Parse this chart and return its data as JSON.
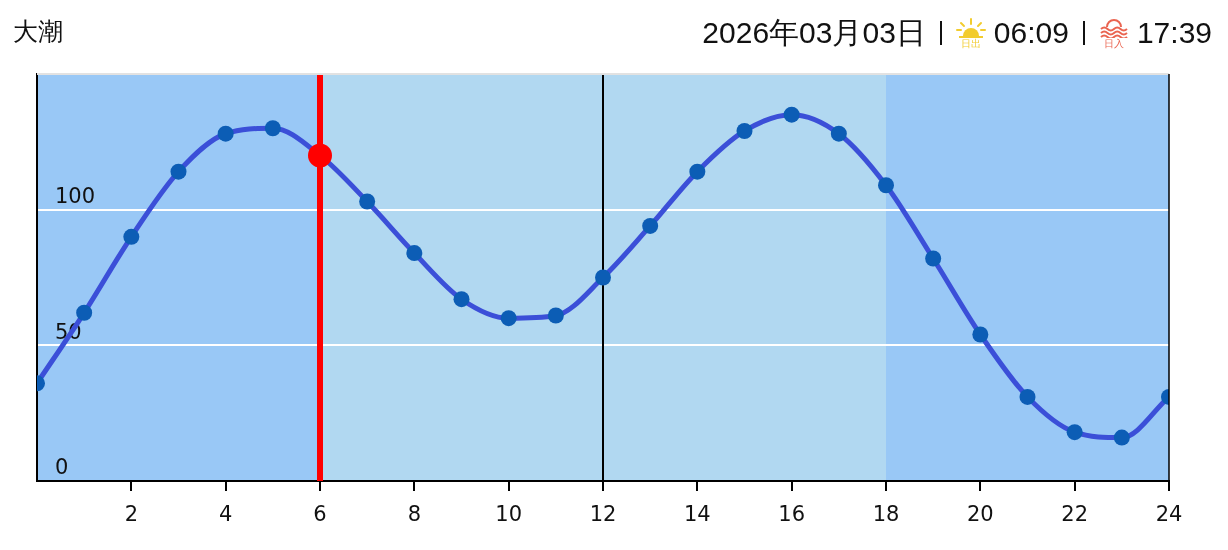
{
  "chart_data": {
    "type": "line",
    "title": "大潮",
    "subtitle": "2026年03月03日",
    "annotations": [
      "日出",
      "06:09",
      "日入",
      "17:39"
    ],
    "x": [
      0,
      1,
      2,
      3,
      4,
      5,
      6,
      7,
      8,
      9,
      10,
      11,
      12,
      13,
      14,
      15,
      16,
      17,
      18,
      19,
      20,
      21,
      22,
      23,
      24
    ],
    "series": [
      {
        "color": "#3b4fd8",
        "colors": [
          "#0c5db5",
          "#0c5db5",
          "#0c5db5",
          "#0c5db5",
          "#0c5db5",
          "#0c5db5",
          "#ff0000",
          "#0c5db5",
          "#0c5db5",
          "#0c5db5",
          "#0c5db5",
          "#0c5db5",
          "#0c5db5",
          "#0c5db5",
          "#0c5db5",
          "#0c5db5",
          "#0c5db5",
          "#0c5db5",
          "#0c5db5",
          "#0c5db5",
          "#0c5db5",
          "#0c5db5",
          "#0c5db5",
          "#0c5db5",
          "#0c5db5"
        ],
        "values": [
          36,
          62,
          90,
          114,
          128,
          130,
          120,
          103,
          84,
          67,
          60,
          61,
          75,
          94,
          114,
          129,
          135,
          128,
          109,
          82,
          54,
          31,
          18,
          16,
          31
        ]
      }
    ],
    "xlim": [
      0,
      24
    ],
    "xticks": [
      2,
      4,
      6,
      8,
      10,
      12,
      14,
      16,
      18,
      20,
      22,
      24
    ],
    "ylim": [
      0,
      150
    ],
    "yticks": [
      0,
      50,
      100
    ],
    "grid": "y",
    "marker": "circle",
    "line_style": "solid",
    "ref_lines": [
      {
        "axis": "x",
        "value": 6,
        "color": "#ff0000"
      },
      {
        "axis": "x",
        "value": 12,
        "color": "#000000"
      }
    ],
    "bands": [
      {
        "axis": "x",
        "from": 0,
        "to": 6,
        "color": "#99c8f6"
      },
      {
        "axis": "x",
        "from": 6,
        "to": 18,
        "color": "#b1d8f1"
      },
      {
        "axis": "x",
        "from": 18,
        "to": 24,
        "color": "#99c8f6"
      }
    ]
  }
}
